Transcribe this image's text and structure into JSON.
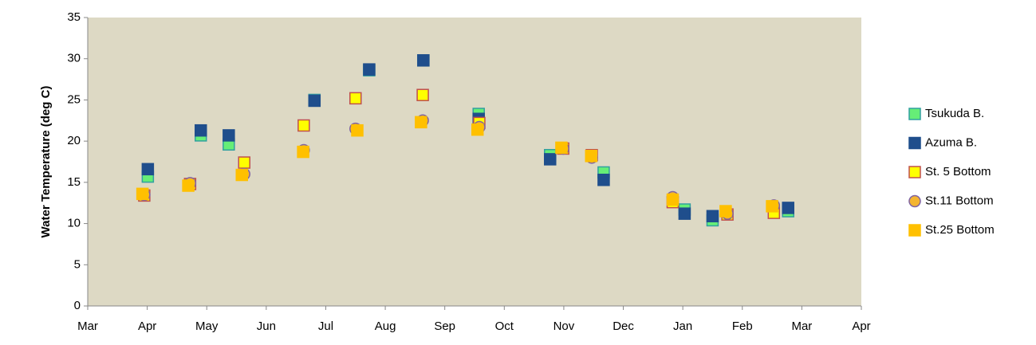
{
  "chart_data": {
    "type": "scatter",
    "y_label": "Water Temperature (deg C)",
    "xlim": [
      0,
      13
    ],
    "ylim": [
      0,
      35
    ],
    "xticks": [
      {
        "value": 0,
        "label": "Mar"
      },
      {
        "value": 1,
        "label": "Apr"
      },
      {
        "value": 2,
        "label": "May"
      },
      {
        "value": 3,
        "label": "Jun"
      },
      {
        "value": 4,
        "label": "Jul"
      },
      {
        "value": 5,
        "label": "Aug"
      },
      {
        "value": 6,
        "label": "Sep"
      },
      {
        "value": 7,
        "label": "Oct"
      },
      {
        "value": 8,
        "label": "Nov"
      },
      {
        "value": 9,
        "label": "Dec"
      },
      {
        "value": 10,
        "label": "Jan"
      },
      {
        "value": 11,
        "label": "Feb"
      },
      {
        "value": 12,
        "label": "Mar"
      },
      {
        "value": 13,
        "label": "Apr"
      }
    ],
    "yticks": [
      0,
      5,
      10,
      15,
      20,
      25,
      30,
      35
    ],
    "grid": false,
    "legend": "right",
    "background": "#ddd9c4",
    "series": [
      {
        "name": "Tsukuda B.",
        "marker": "square",
        "color": "#66ee77",
        "edgecolor": "#31a0a0",
        "x": [
          1.01,
          1.9,
          2.37,
          3.81,
          4.73,
          5.64,
          6.57,
          7.77,
          8.67,
          10.03,
          10.5,
          11.77
        ],
        "values": [
          15.7,
          20.7,
          19.6,
          25.0,
          28.6,
          29.8,
          23.3,
          18.3,
          16.2,
          11.7,
          10.4,
          11.5
        ]
      },
      {
        "name": "Azuma B.",
        "marker": "square",
        "color": "#1f4e8c",
        "edgecolor": "#1f4e8c",
        "x": [
          1.01,
          1.9,
          2.37,
          3.81,
          4.73,
          5.64,
          6.57,
          7.77,
          8.67,
          10.03,
          10.5,
          11.77
        ],
        "values": [
          16.6,
          21.3,
          20.7,
          24.9,
          28.7,
          29.8,
          22.7,
          17.8,
          15.3,
          11.2,
          10.9,
          11.9
        ]
      },
      {
        "name": "St. 5 Bottom",
        "marker": "square",
        "color": "#ffff00",
        "edgecolor": "#c0504d",
        "x": [
          0.95,
          1.72,
          2.63,
          3.63,
          4.5,
          5.63,
          6.58,
          7.99,
          8.47,
          9.83,
          10.75,
          11.53
        ],
        "values": [
          13.4,
          14.8,
          17.4,
          21.9,
          25.2,
          25.6,
          22.2,
          19.1,
          18.3,
          12.6,
          11.1,
          11.3
        ]
      },
      {
        "name": "St.11 Bottom",
        "marker": "circle",
        "color": "#f4b530",
        "edgecolor": "#8064a2",
        "x": [
          0.95,
          1.72,
          2.63,
          3.63,
          4.5,
          5.63,
          6.58,
          7.99,
          8.47,
          9.83,
          10.75,
          11.53
        ],
        "values": [
          13.5,
          14.9,
          16.0,
          18.9,
          21.5,
          22.5,
          21.7,
          19.1,
          18.0,
          13.2,
          11.2,
          12.2
        ]
      },
      {
        "name": "St.25 Bottom",
        "marker": "square",
        "color": "#ffc000",
        "edgecolor": "#ffc000",
        "x": [
          0.92,
          1.69,
          2.59,
          3.62,
          4.53,
          5.6,
          6.55,
          7.96,
          8.46,
          9.83,
          10.72,
          11.5
        ],
        "values": [
          13.6,
          14.6,
          15.9,
          18.7,
          21.3,
          22.3,
          21.4,
          19.2,
          18.2,
          12.9,
          11.5,
          12.1
        ]
      }
    ]
  }
}
